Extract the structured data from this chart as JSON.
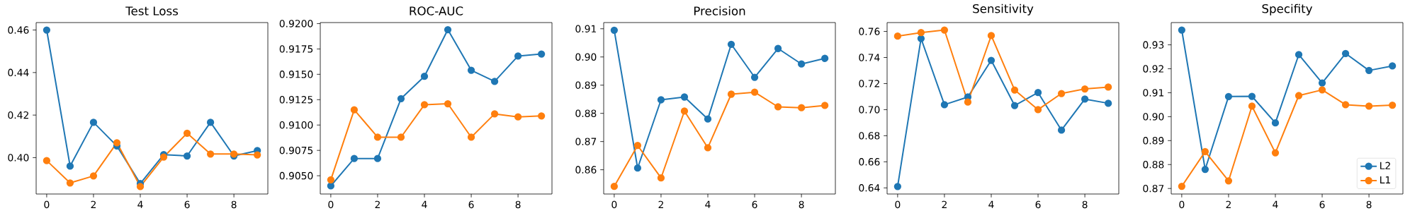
{
  "chart_data": [
    {
      "type": "line",
      "title": "Test Loss",
      "x": [
        0,
        1,
        2,
        3,
        4,
        5,
        6,
        7,
        8,
        9
      ],
      "xlim": [
        -0.45,
        9.45
      ],
      "xticks": [
        0,
        2,
        4,
        6,
        8
      ],
      "ylim": [
        0.3829,
        0.4635
      ],
      "yticks": [
        {
          "value": 0.4,
          "label": "0.40"
        },
        0.42,
        0.44,
        0.46
      ],
      "marker": "circle",
      "legend": false,
      "series": [
        {
          "color": "#1f77b4",
          "values": [
            0.46,
            0.396,
            0.4166,
            0.4055,
            0.3878,
            0.4014,
            0.4008,
            0.4166,
            0.4008,
            0.4033
          ]
        },
        {
          "color": "#ff7f0e",
          "values": [
            0.3986,
            0.3881,
            0.3914,
            0.407,
            0.3864,
            0.4003,
            0.4115,
            0.4017,
            0.4017,
            0.4013
          ]
        }
      ]
    },
    {
      "type": "line",
      "title": "ROC-AUC",
      "x": [
        0,
        1,
        2,
        3,
        4,
        5,
        6,
        7,
        8,
        9
      ],
      "xlim": [
        -0.45,
        9.45
      ],
      "xticks": [
        0,
        2,
        4,
        6,
        8
      ],
      "ylim": [
        0.9032,
        0.9201
      ],
      "yticks": [
        {
          "value": 0.905,
          "label": "0.9050"
        },
        0.9075,
        {
          "value": 0.91,
          "label": "0.9100"
        },
        0.9125,
        {
          "value": 0.915,
          "label": "0.9150"
        },
        0.9175,
        {
          "value": 0.92,
          "label": "0.9200"
        }
      ],
      "marker": "circle",
      "legend": false,
      "series": [
        {
          "color": "#1f77b4",
          "values": [
            0.904,
            0.9067,
            0.9067,
            0.9126,
            0.9148,
            0.9194,
            0.9154,
            0.9143,
            0.9168,
            0.917
          ]
        },
        {
          "color": "#ff7f0e",
          "values": [
            0.9046,
            0.9115,
            0.9088,
            0.9088,
            0.912,
            0.9121,
            0.9088,
            0.9111,
            0.9108,
            0.9109
          ]
        }
      ]
    },
    {
      "type": "line",
      "title": "Precision",
      "x": [
        0,
        1,
        2,
        3,
        4,
        5,
        6,
        7,
        8,
        9
      ],
      "xlim": [
        -0.45,
        9.45
      ],
      "xticks": [
        0,
        2,
        4,
        6,
        8
      ],
      "ylim": [
        0.8514,
        0.9122
      ],
      "yticks": [
        0.86,
        0.87,
        0.88,
        0.89,
        {
          "value": 0.9,
          "label": "0.90"
        },
        0.91
      ],
      "marker": "circle",
      "legend": false,
      "series": [
        {
          "color": "#1f77b4",
          "values": [
            0.9095,
            0.8606,
            0.8848,
            0.8858,
            0.878,
            0.9045,
            0.8928,
            0.903,
            0.8975,
            0.8995
          ]
        },
        {
          "color": "#ff7f0e",
          "values": [
            0.8541,
            0.8686,
            0.8571,
            0.8808,
            0.8678,
            0.8868,
            0.8875,
            0.8823,
            0.882,
            0.8828
          ]
        }
      ]
    },
    {
      "type": "line",
      "title": "Sensitivity",
      "x": [
        0,
        1,
        2,
        3,
        4,
        5,
        6,
        7,
        8,
        9
      ],
      "xlim": [
        -0.45,
        9.45
      ],
      "xticks": [
        0,
        2,
        4,
        6,
        8
      ],
      "ylim": [
        0.6353,
        0.7668
      ],
      "yticks": [
        0.64,
        0.66,
        0.68,
        {
          "value": 0.7,
          "label": "0.70"
        },
        0.72,
        0.74,
        0.76
      ],
      "marker": "circle",
      "legend": false,
      "series": [
        {
          "color": "#1f77b4",
          "values": [
            0.6411,
            0.7546,
            0.7038,
            0.7097,
            0.7378,
            0.7032,
            0.7131,
            0.6843,
            0.7081,
            0.7049
          ]
        },
        {
          "color": "#ff7f0e",
          "values": [
            0.7564,
            0.7591,
            0.7611,
            0.7058,
            0.7568,
            0.7151,
            0.7,
            0.7124,
            0.7159,
            0.7173
          ]
        }
      ]
    },
    {
      "type": "line",
      "title": "Specifity",
      "x": [
        0,
        1,
        2,
        3,
        4,
        5,
        6,
        7,
        8,
        9
      ],
      "xlim": [
        -0.45,
        9.45
      ],
      "xticks": [
        0,
        2,
        4,
        6,
        8
      ],
      "ylim": [
        0.8677,
        0.9393
      ],
      "yticks": [
        0.87,
        0.88,
        0.89,
        {
          "value": 0.9,
          "label": "0.90"
        },
        0.91,
        0.92,
        0.93
      ],
      "marker": "circle",
      "legend": "bottom right",
      "series": [
        {
          "name": "L2",
          "color": "#1f77b4",
          "values": [
            0.9362,
            0.878,
            0.9084,
            0.9085,
            0.8974,
            0.9259,
            0.9141,
            0.9264,
            0.9193,
            0.9212
          ]
        },
        {
          "name": "L1",
          "color": "#ff7f0e",
          "values": [
            0.8709,
            0.8854,
            0.8732,
            0.9044,
            0.8849,
            0.9088,
            0.9112,
            0.905,
            0.9044,
            0.9048
          ]
        }
      ]
    }
  ]
}
